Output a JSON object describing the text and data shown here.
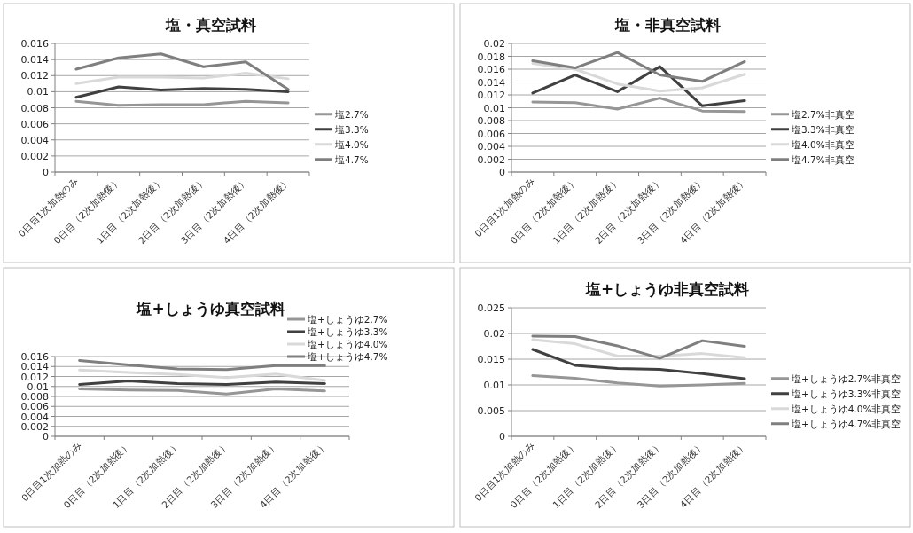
{
  "chart_data": [
    {
      "type": "line",
      "title": "塩・真空試料",
      "categories": [
        "0日目1次加熱のみ",
        "0日目（2次加熱後）",
        "1日目（2次加熱後）",
        "2日目（2次加熱後）",
        "3日目（2次加熱後）",
        "4日目（2次加熱後）"
      ],
      "ylim": [
        0,
        0.016
      ],
      "yticks": [
        0,
        0.002,
        0.004,
        0.006,
        0.008,
        0.01,
        0.012,
        0.014,
        0.016
      ],
      "grid": "y",
      "legend": "right",
      "series": [
        {
          "name": "塩2.7%",
          "color": "#969696",
          "values": [
            0.0088,
            0.0083,
            0.0084,
            0.0084,
            0.0088,
            0.0086
          ]
        },
        {
          "name": "塩3.3%",
          "color": "#404040",
          "values": [
            0.0093,
            0.0106,
            0.0102,
            0.0104,
            0.0103,
            0.01
          ]
        },
        {
          "name": "塩4.0%",
          "color": "#d9d9d9",
          "values": [
            0.011,
            0.0118,
            0.0118,
            0.0117,
            0.0123,
            0.0116
          ]
        },
        {
          "name": "塩4.7%",
          "color": "#7f7f7f",
          "values": [
            0.0128,
            0.0142,
            0.0147,
            0.0131,
            0.0137,
            0.0103
          ]
        }
      ]
    },
    {
      "type": "line",
      "title": "塩・非真空試料",
      "categories": [
        "0日目1次加熱のみ",
        "0日目（2次加熱後）",
        "1日目（2次加熱後）",
        "2日目（2次加熱後）",
        "3日目（2次加熱後）",
        "4日目（2次加熱後）"
      ],
      "ylim": [
        0,
        0.02
      ],
      "yticks": [
        0,
        0.002,
        0.004,
        0.006,
        0.008,
        0.01,
        0.012,
        0.014,
        0.016,
        0.018,
        0.02
      ],
      "grid": "y",
      "legend": "right",
      "series": [
        {
          "name": "塩2.7%非真空",
          "color": "#969696",
          "values": [
            0.0109,
            0.0108,
            0.0098,
            0.0115,
            0.0095,
            0.0094
          ]
        },
        {
          "name": "塩3.3%非真空",
          "color": "#404040",
          "values": [
            0.0123,
            0.0151,
            0.0125,
            0.0164,
            0.0103,
            0.0111
          ]
        },
        {
          "name": "塩4.0%非真空",
          "color": "#d9d9d9",
          "values": [
            0.0169,
            0.016,
            0.0137,
            0.0126,
            0.0131,
            0.0152
          ]
        },
        {
          "name": "塩4.7%非真空",
          "color": "#7f7f7f",
          "values": [
            0.0173,
            0.0162,
            0.0186,
            0.0151,
            0.0141,
            0.0172
          ]
        }
      ]
    },
    {
      "type": "line",
      "title": "塩+しょうゆ真空試料",
      "categories": [
        "0日目1次加熱のみ",
        "0日目（2次加熱後）",
        "1日目（2次加熱後）",
        "2日目（2次加熱後）",
        "3日目（2次加熱後）",
        "4日目（2次加熱後）"
      ],
      "ylim": [
        0,
        0.016
      ],
      "yticks": [
        0,
        0.002,
        0.004,
        0.006,
        0.008,
        0.01,
        0.012,
        0.014,
        0.016
      ],
      "grid": "y",
      "legend": "top right",
      "series": [
        {
          "name": "塩+しょうゆ2.7%",
          "color": "#969696",
          "values": [
            0.0095,
            0.0093,
            0.0092,
            0.0085,
            0.0095,
            0.0091
          ]
        },
        {
          "name": "塩+しょうゆ3.3%",
          "color": "#404040",
          "values": [
            0.0104,
            0.0111,
            0.0106,
            0.0104,
            0.0109,
            0.0106
          ]
        },
        {
          "name": "塩+しょうゆ4.0%",
          "color": "#d9d9d9",
          "values": [
            0.0133,
            0.0128,
            0.0124,
            0.0118,
            0.0125,
            0.0112
          ]
        },
        {
          "name": "塩+しょうゆ4.7%",
          "color": "#7f7f7f",
          "values": [
            0.0152,
            0.0143,
            0.0135,
            0.0134,
            0.0142,
            0.0142
          ]
        }
      ]
    },
    {
      "type": "line",
      "title": "塩+しょうゆ非真空試料",
      "categories": [
        "0日目1次加熱のみ",
        "0日目（2次加熱後）",
        "1日目（2次加熱後）",
        "2日目（2次加熱後）",
        "3日目（2次加熱後）",
        "4日目（2次加熱後）"
      ],
      "ylim": [
        0,
        0.025
      ],
      "yticks": [
        0,
        0.005,
        0.01,
        0.015,
        0.02,
        0.025
      ],
      "grid": "y",
      "legend": "right",
      "series": [
        {
          "name": "塩+しょうゆ2.7%非真空",
          "color": "#969696",
          "values": [
            0.0118,
            0.0113,
            0.0104,
            0.0098,
            0.01,
            0.0103
          ]
        },
        {
          "name": "塩+しょうゆ3.3%非真空",
          "color": "#404040",
          "values": [
            0.0169,
            0.0138,
            0.0132,
            0.013,
            0.0122,
            0.0112
          ]
        },
        {
          "name": "塩+しょうゆ4.0%非真空",
          "color": "#d9d9d9",
          "values": [
            0.0188,
            0.018,
            0.0156,
            0.0156,
            0.0161,
            0.0153
          ]
        },
        {
          "name": "塩+しょうゆ4.7%非真空",
          "color": "#7f7f7f",
          "values": [
            0.0195,
            0.0194,
            0.0176,
            0.0152,
            0.0186,
            0.0175
          ]
        }
      ]
    }
  ]
}
